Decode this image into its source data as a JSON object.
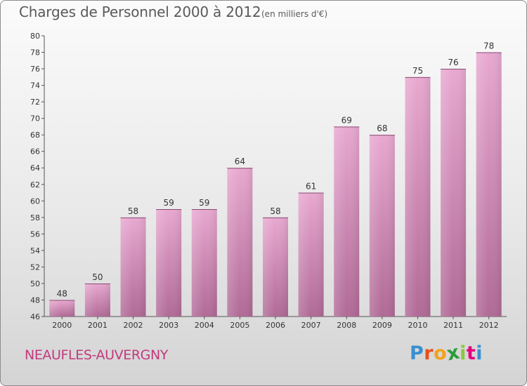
{
  "header": {
    "title": "Charges de Personnel 2000 à 2012",
    "subtitle": "(en milliers d'€)"
  },
  "footer": {
    "commune": "NEAUFLES-AUVERGNY",
    "logo_letters": [
      "P",
      "r",
      "o",
      "x",
      "i",
      "t",
      "i"
    ],
    "logo_colors": [
      "#3a8fd0",
      "#e94e1b",
      "#f4a11a",
      "#2a9d3a",
      "#8cc63f",
      "#e5007e",
      "#3a8fd0"
    ]
  },
  "chart_data": {
    "type": "bar",
    "title": "Charges de Personnel 2000 à 2012",
    "subtitle": "(en milliers d'€)",
    "xlabel": "",
    "ylabel": "",
    "categories": [
      "2000",
      "2001",
      "2002",
      "2003",
      "2004",
      "2005",
      "2006",
      "2007",
      "2008",
      "2009",
      "2010",
      "2011",
      "2012"
    ],
    "values": [
      48,
      50,
      58,
      59,
      59,
      64,
      58,
      61,
      69,
      68,
      75,
      76,
      78
    ],
    "ylim": [
      46,
      80
    ],
    "yticks": [
      46,
      48,
      50,
      52,
      54,
      56,
      58,
      60,
      62,
      64,
      66,
      68,
      70,
      72,
      74,
      76,
      78,
      80
    ],
    "grid": false,
    "legend": "none",
    "bar_color_top": "#e8a8d0",
    "bar_color_bottom": "#b06a96"
  }
}
